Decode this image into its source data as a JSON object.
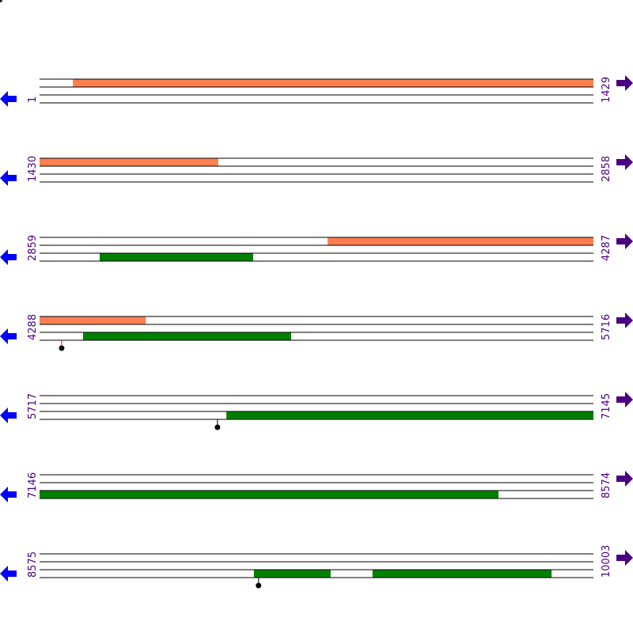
{
  "colors": {
    "forward_feature": "#ff7f50",
    "reverse_feature": "#008000",
    "line": "#000000",
    "left_arrow": "#0000ff",
    "right_arrow": "#4b0082",
    "label": "#4b0082"
  },
  "bases_per_row": 1429,
  "rows": [
    {
      "start": "1",
      "end": "1429",
      "s": 1,
      "e": 1429,
      "features": [
        {
          "lane": "top",
          "from": 87,
          "to": 1429
        }
      ],
      "markers": []
    },
    {
      "start": "1430",
      "end": "2858",
      "s": 1430,
      "e": 2858,
      "features": [
        {
          "lane": "top",
          "from": 1430,
          "to": 1891
        }
      ],
      "markers": []
    },
    {
      "start": "2859",
      "end": "4287",
      "s": 2859,
      "e": 4287,
      "features": [
        {
          "lane": "top",
          "from": 3602,
          "to": 4287
        },
        {
          "lane": "bottom",
          "from": 3014,
          "to": 3410
        }
      ],
      "markers": []
    },
    {
      "start": "4288",
      "end": "5716",
      "s": 4288,
      "e": 5716,
      "features": [
        {
          "lane": "top",
          "from": 4288,
          "to": 4562
        },
        {
          "lane": "bottom",
          "from": 4400,
          "to": 4937
        }
      ],
      "markers": [
        {
          "pos": 4345,
          "color": "#ff0000"
        }
      ]
    },
    {
      "start": "5717",
      "end": "7145",
      "s": 5717,
      "e": 7145,
      "features": [
        {
          "lane": "bottom",
          "from": 6199,
          "to": 7145
        }
      ],
      "markers": [
        {
          "pos": 6176,
          "color": "#000000"
        }
      ]
    },
    {
      "start": "7146",
      "end": "8574",
      "s": 7146,
      "e": 8574,
      "features": [
        {
          "lane": "bottom",
          "from": 7146,
          "to": 8330
        }
      ],
      "markers": []
    },
    {
      "start": "8575",
      "end": "10003",
      "s": 8575,
      "e": 10003,
      "features": [
        {
          "lane": "bottom",
          "from": 9128,
          "to": 9326
        },
        {
          "lane": "bottom",
          "from": 9434,
          "to": 9896
        }
      ],
      "markers": [
        {
          "pos": 9140,
          "color": "#000000"
        }
      ]
    }
  ]
}
